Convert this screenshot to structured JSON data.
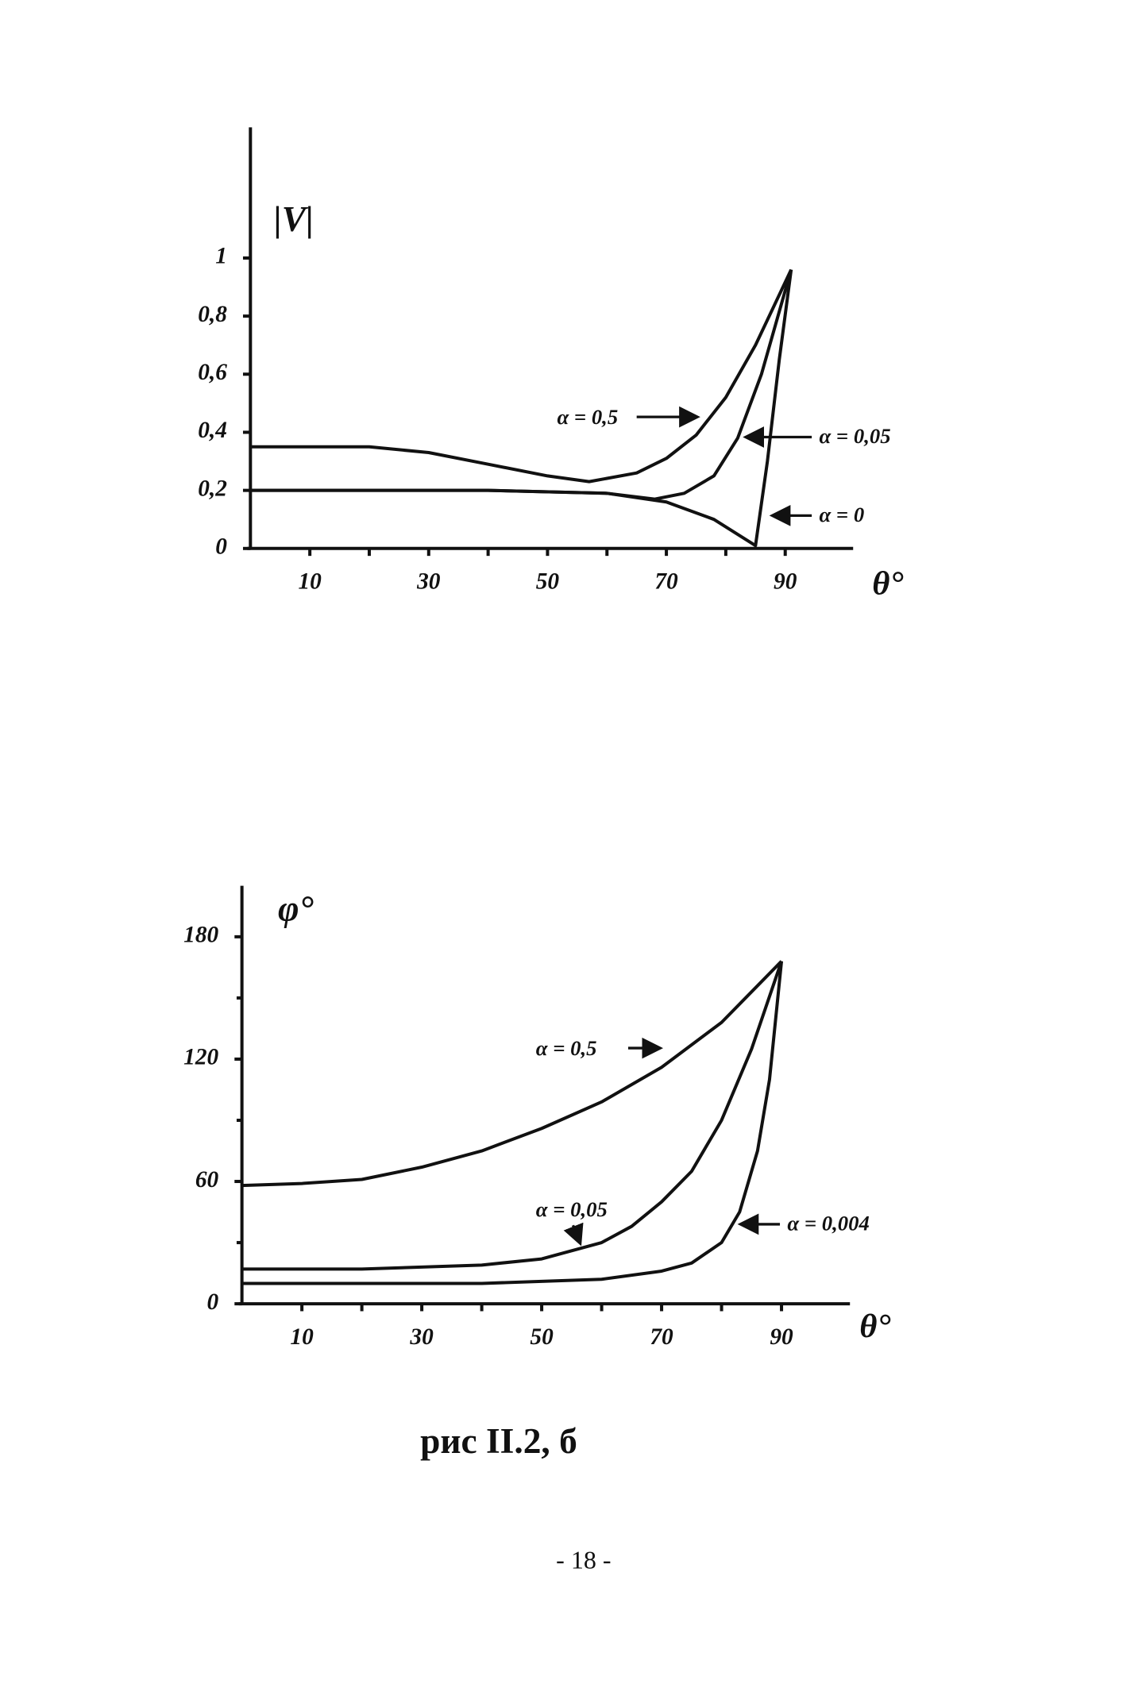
{
  "chart_data": [
    {
      "type": "line",
      "ylabel": "|V|",
      "xlabel": "θ°",
      "xlim": [
        0,
        100
      ],
      "ylim": [
        0,
        1.45
      ],
      "xticks": [
        10,
        30,
        50,
        70,
        90
      ],
      "minor_xticks": [
        20,
        40,
        60,
        80
      ],
      "yticks": [
        0,
        {
          "value": 0.2,
          "label": "0,2"
        },
        {
          "value": 0.4,
          "label": "0,4"
        },
        {
          "value": 0.6,
          "label": "0,6"
        },
        {
          "value": 0.8,
          "label": "0,8"
        },
        1
      ],
      "color": "#111111",
      "series": [
        {
          "name": "α = 0,5",
          "x": [
            0,
            10,
            20,
            30,
            40,
            50,
            57,
            65,
            70,
            75,
            80,
            85,
            91
          ],
          "values": [
            0.35,
            0.35,
            0.35,
            0.33,
            0.29,
            0.25,
            0.23,
            0.26,
            0.31,
            0.39,
            0.52,
            0.7,
            0.96
          ]
        },
        {
          "name": "α = 0,05",
          "x": [
            0,
            20,
            40,
            60,
            68,
            73,
            78,
            82,
            86,
            91
          ],
          "values": [
            0.2,
            0.2,
            0.2,
            0.19,
            0.17,
            0.19,
            0.25,
            0.38,
            0.6,
            0.96
          ]
        },
        {
          "name": "α = 0",
          "x": [
            0,
            20,
            40,
            60,
            70,
            78,
            85,
            87,
            89,
            91
          ],
          "values": [
            0.2,
            0.2,
            0.2,
            0.19,
            0.16,
            0.1,
            0.01,
            0.3,
            0.65,
            0.96
          ]
        }
      ]
    },
    {
      "type": "line",
      "ylabel": "φ°",
      "xlabel": "θ°",
      "xlim": [
        0,
        100
      ],
      "ylim": [
        0,
        205
      ],
      "xticks": [
        10,
        30,
        50,
        70,
        90
      ],
      "minor_xticks": [
        20,
        40,
        60,
        80
      ],
      "yticks": [
        0,
        60,
        120,
        180
      ],
      "minor_yticks": [
        30,
        90,
        150
      ],
      "color": "#111111",
      "series": [
        {
          "name": "α = 0,5",
          "x": [
            0,
            10,
            20,
            30,
            40,
            50,
            60,
            70,
            80,
            90
          ],
          "values": [
            58,
            59,
            61,
            67,
            75,
            86,
            99,
            116,
            138,
            168
          ]
        },
        {
          "name": "α = 0,05",
          "x": [
            0,
            20,
            40,
            50,
            60,
            65,
            70,
            75,
            80,
            85,
            90
          ],
          "values": [
            17,
            17,
            19,
            22,
            30,
            38,
            50,
            65,
            90,
            125,
            168
          ]
        },
        {
          "name": "α = 0,004",
          "x": [
            0,
            20,
            40,
            60,
            70,
            75,
            80,
            83,
            86,
            88,
            90
          ],
          "values": [
            10,
            10,
            10,
            12,
            16,
            20,
            30,
            45,
            75,
            110,
            168
          ]
        }
      ]
    }
  ],
  "caption": "рис II.2, б",
  "page_number": "- 18 -"
}
